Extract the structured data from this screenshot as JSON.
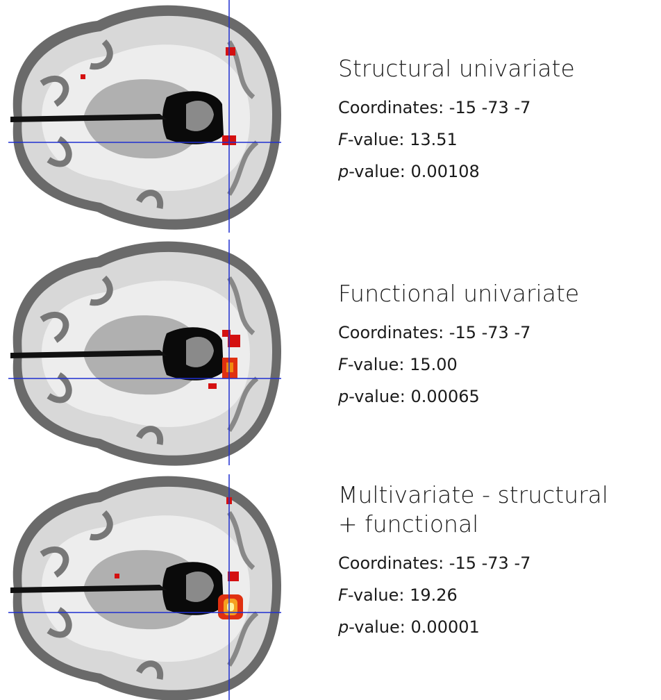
{
  "panels": [
    {
      "title_lines": [
        "Structural univariate"
      ],
      "coordinates": "Coordinates: -15 -73 -7",
      "f_value": [
        "F",
        "-value: 13.51"
      ],
      "p_value": [
        "p",
        "-value: 0.00108"
      ]
    },
    {
      "title_lines": [
        "Functional univariate"
      ],
      "coordinates": "Coordinates: -15 -73 -7",
      "f_value": [
        "F",
        "-value: 15.00"
      ],
      "p_value": [
        "p",
        "-value: 0.00065"
      ]
    },
    {
      "title_lines": [
        "Multivariate - structural",
        "+ functional"
      ],
      "coordinates": "Coordinates: -15 -73 -7",
      "f_value": [
        "F",
        "-value: 19.26"
      ],
      "p_value": [
        "p",
        "-value: 0.00001"
      ]
    }
  ]
}
